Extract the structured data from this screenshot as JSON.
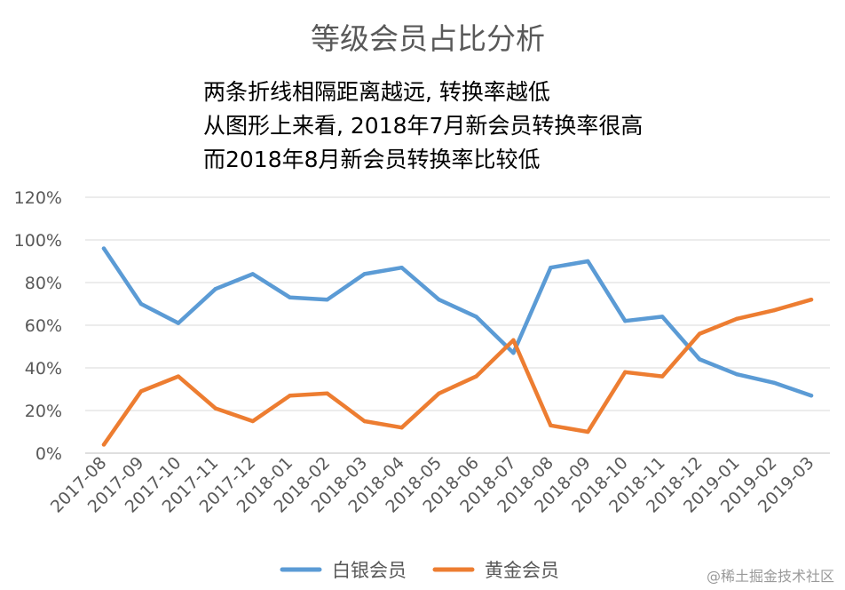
{
  "chart_data": {
    "type": "line",
    "title": "等级会员占比分析",
    "annotations": [
      "两条折线相隔距离越远, 转换率越低",
      "从图形上来看, 2018年7月新会员转换率很高",
      "而2018年8月新会员转换率比较低"
    ],
    "categories": [
      "2017-08",
      "2017-09",
      "2017-10",
      "2017-11",
      "2017-12",
      "2018-01",
      "2018-02",
      "2018-03",
      "2018-04",
      "2018-05",
      "2018-06",
      "2018-07",
      "2018-08",
      "2018-09",
      "2018-10",
      "2018-11",
      "2018-12",
      "2019-01",
      "2019-02",
      "2019-03"
    ],
    "series": [
      {
        "name": "白银会员",
        "color": "#5b9bd5",
        "values": [
          96,
          70,
          61,
          77,
          84,
          73,
          72,
          84,
          87,
          72,
          64,
          47,
          87,
          90,
          62,
          64,
          44,
          37,
          33,
          27
        ]
      },
      {
        "name": "黄金会员",
        "color": "#ed7d31",
        "values": [
          4,
          29,
          36,
          21,
          15,
          27,
          28,
          15,
          12,
          28,
          36,
          53,
          13,
          10,
          38,
          36,
          56,
          63,
          67,
          72
        ]
      }
    ],
    "yticks": [
      "0%",
      "20%",
      "40%",
      "60%",
      "80%",
      "100%",
      "120%"
    ],
    "ylim": [
      0,
      120
    ],
    "grid": true,
    "legend": "bottom",
    "xlabel": "",
    "ylabel": ""
  },
  "watermark": "@稀土掘金技术社区"
}
